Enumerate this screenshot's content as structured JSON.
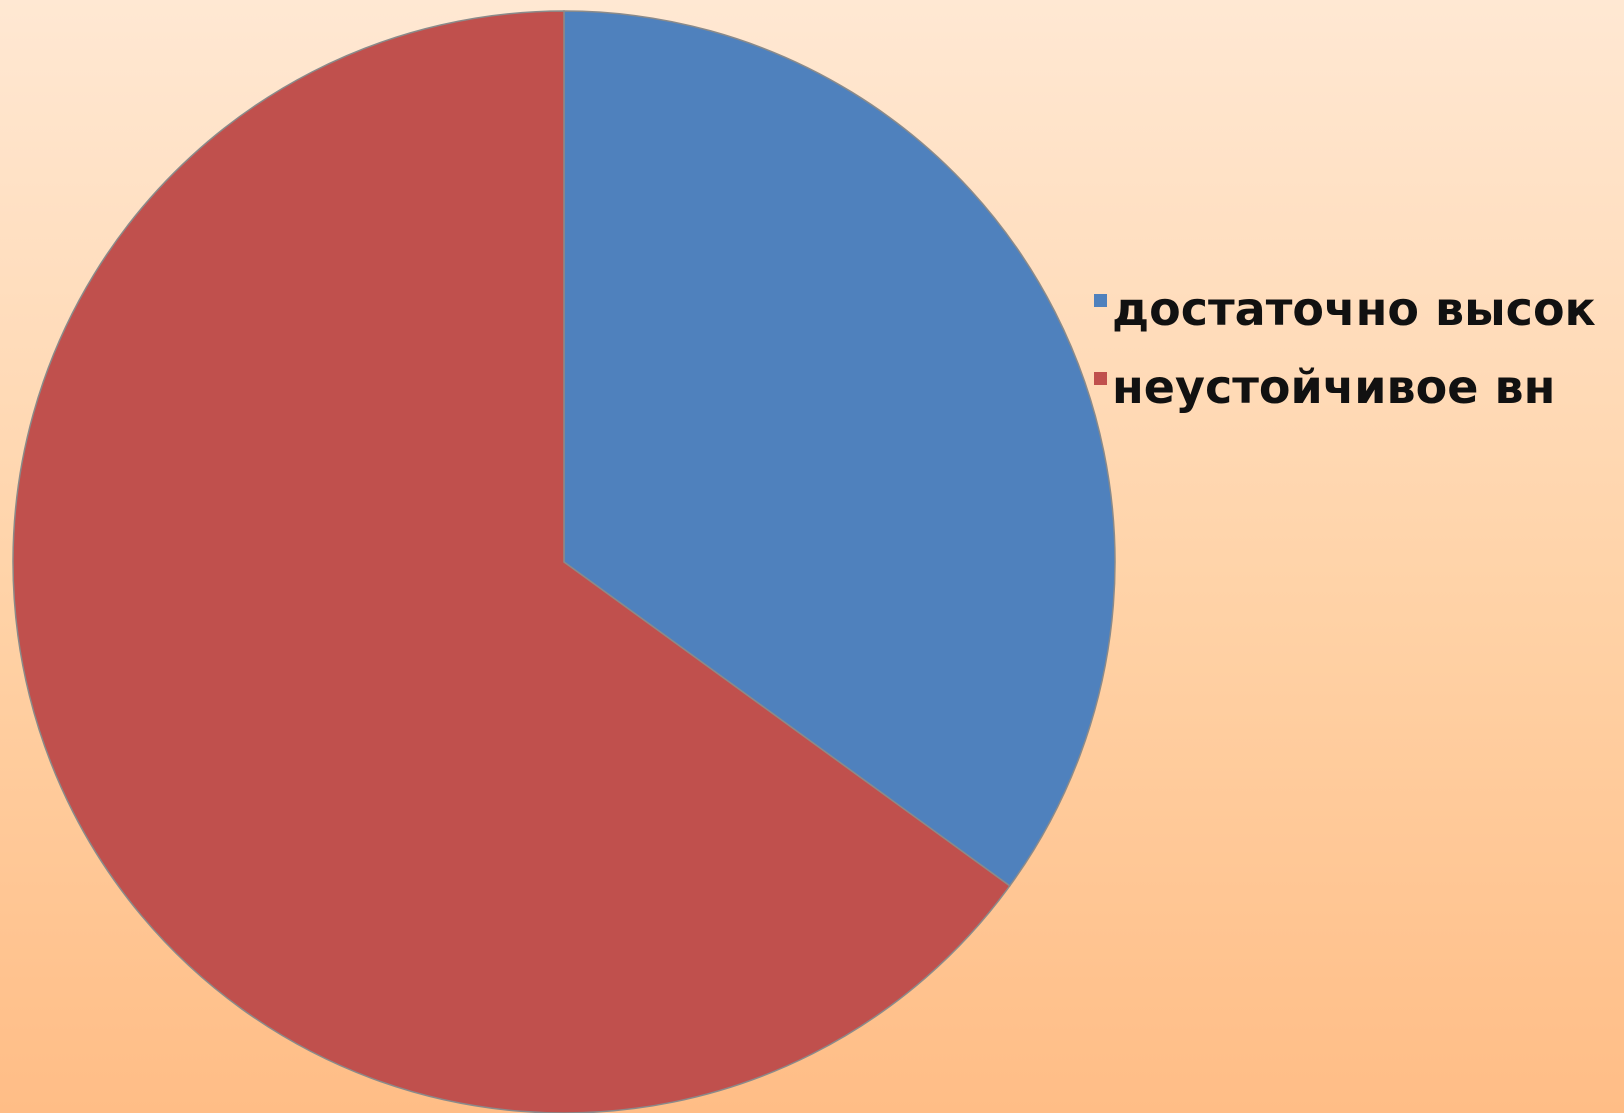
{
  "chart_data": {
    "type": "pie",
    "slices": [
      {
        "name": "достаточно высок",
        "value": 35,
        "color": "#4f81bd"
      },
      {
        "name": "неустойчивое вн",
        "value": 65,
        "color": "#c0504d"
      }
    ],
    "legend_position": "right"
  }
}
